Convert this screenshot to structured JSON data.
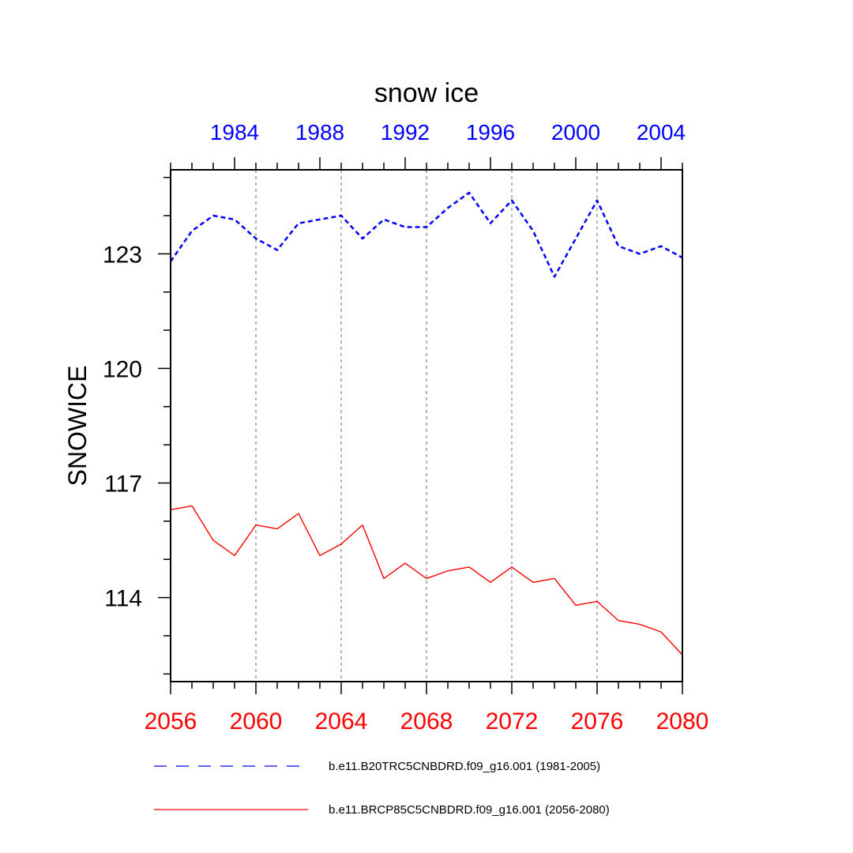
{
  "chart_data": {
    "type": "line",
    "title": "snow ice",
    "ylabel": "SNOWICE",
    "xlabel": "",
    "ylim": [
      111.8,
      125.2
    ],
    "yticks": [
      114,
      117,
      120,
      123
    ],
    "grid": "dashed vertical lines at bottom-axis major ticks",
    "bottom_axis": {
      "range": [
        2056,
        2080
      ],
      "ticks": [
        2056,
        2060,
        2064,
        2068,
        2072,
        2076,
        2080
      ],
      "color": "#ff0000"
    },
    "top_axis": {
      "range": [
        1981,
        2005
      ],
      "ticks": [
        1984,
        1988,
        1992,
        1996,
        2000,
        2004
      ],
      "color": "#0000ff"
    },
    "series": [
      {
        "name": "b.e11.B20TRC5CNBDRD.f09_g16.001 (1981-2005)",
        "axis": "top",
        "style": "dashed",
        "color": "#0000ff",
        "x": [
          1981,
          1982,
          1983,
          1984,
          1985,
          1986,
          1987,
          1988,
          1989,
          1990,
          1991,
          1992,
          1993,
          1994,
          1995,
          1996,
          1997,
          1998,
          1999,
          2000,
          2001,
          2002,
          2003,
          2004,
          2005
        ],
        "values": [
          122.8,
          123.6,
          124.0,
          123.9,
          123.4,
          123.1,
          123.8,
          123.9,
          124.0,
          123.4,
          123.9,
          123.7,
          123.7,
          124.2,
          124.6,
          123.8,
          124.4,
          123.6,
          122.4,
          123.4,
          124.4,
          123.2,
          123.0,
          123.2,
          122.9
        ]
      },
      {
        "name": "b.e11.BRCP85C5CNBDRD.f09_g16.001 (2056-2080)",
        "axis": "bottom",
        "style": "solid",
        "color": "#ff0000",
        "x": [
          2056,
          2057,
          2058,
          2059,
          2060,
          2061,
          2062,
          2063,
          2064,
          2065,
          2066,
          2067,
          2068,
          2069,
          2070,
          2071,
          2072,
          2073,
          2074,
          2075,
          2076,
          2077,
          2078,
          2079,
          2080
        ],
        "values": [
          116.3,
          116.4,
          115.5,
          115.1,
          115.9,
          115.8,
          116.2,
          115.1,
          115.4,
          115.9,
          114.5,
          114.9,
          114.5,
          114.7,
          114.8,
          114.4,
          114.8,
          114.4,
          114.5,
          113.8,
          113.9,
          113.4,
          113.3,
          113.1,
          112.5
        ]
      }
    ],
    "legend": {
      "placement": "bottom",
      "entries": [
        {
          "label": "b.e11.B20TRC5CNBDRD.f09_g16.001 (1981-2005)",
          "color": "#0000ff",
          "style": "dashed"
        },
        {
          "label": "b.e11.BRCP85C5CNBDRD.f09_g16.001 (2056-2080)",
          "color": "#ff0000",
          "style": "solid"
        }
      ]
    }
  }
}
